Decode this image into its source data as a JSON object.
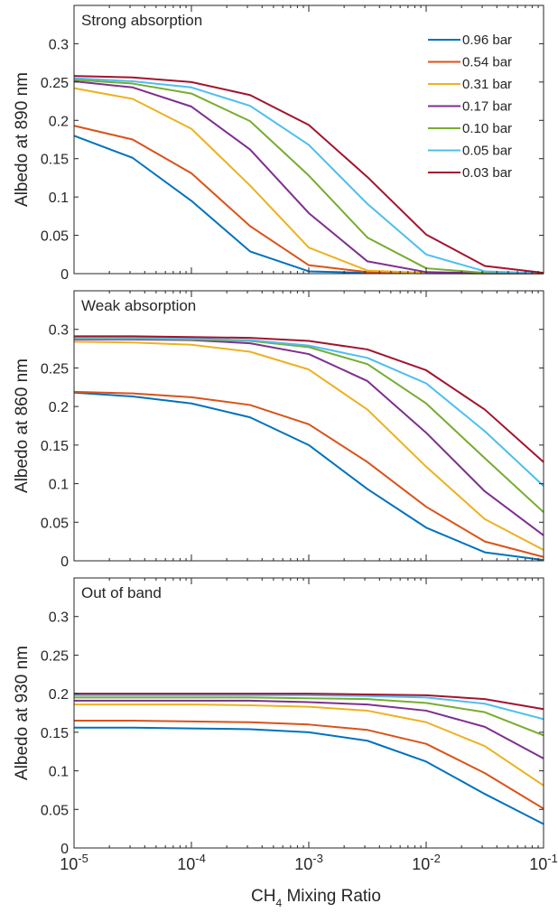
{
  "chart_data": [
    {
      "type": "line",
      "title": "Strong absorption",
      "ylabel": "Albedo at 890 nm",
      "xlabel": "",
      "xscale": "log",
      "xlim": [
        1e-05,
        0.1
      ],
      "ylim": [
        0,
        0.35
      ],
      "yticks": [
        "0",
        "0.05",
        "0.1",
        "0.15",
        "0.2",
        "0.25",
        "0.3"
      ],
      "legend": "top-right",
      "x": [
        1e-05,
        3.16e-05,
        0.0001,
        0.000316,
        0.001,
        0.00316,
        0.01,
        0.0316,
        0.1
      ],
      "series": [
        {
          "name": "0.96 bar",
          "color": "#0072BD",
          "values": [
            0.18,
            0.151,
            0.095,
            0.029,
            0.003,
            0.001,
            0.0005,
            0.0003,
            0.0002
          ]
        },
        {
          "name": "0.54 bar",
          "color": "#D95319",
          "values": [
            0.193,
            0.175,
            0.131,
            0.062,
            0.011,
            0.002,
            0.0006,
            0.0003,
            0.0002
          ]
        },
        {
          "name": "0.31 bar",
          "color": "#EDB120",
          "values": [
            0.242,
            0.228,
            0.189,
            0.115,
            0.034,
            0.004,
            0.001,
            0.0004,
            0.0002
          ]
        },
        {
          "name": "0.17 bar",
          "color": "#7E2F8E",
          "values": [
            0.251,
            0.243,
            0.218,
            0.162,
            0.079,
            0.016,
            0.002,
            0.0005,
            0.0003
          ]
        },
        {
          "name": "0.10 bar",
          "color": "#77AC30",
          "values": [
            0.253,
            0.248,
            0.235,
            0.199,
            0.128,
            0.047,
            0.007,
            0.001,
            0.0003
          ]
        },
        {
          "name": "0.05 bar",
          "color": "#4DBEEE",
          "values": [
            0.255,
            0.251,
            0.243,
            0.219,
            0.168,
            0.091,
            0.025,
            0.003,
            0.0005
          ]
        },
        {
          "name": "0.03 bar",
          "color": "#A2142F",
          "values": [
            0.258,
            0.256,
            0.25,
            0.233,
            0.194,
            0.126,
            0.051,
            0.01,
            0.001
          ]
        }
      ]
    },
    {
      "type": "line",
      "title": "Weak absorption",
      "ylabel": "Albedo at 860 nm",
      "xlabel": "",
      "xscale": "log",
      "xlim": [
        1e-05,
        0.1
      ],
      "ylim": [
        0,
        0.35
      ],
      "yticks": [
        "0",
        "0.05",
        "0.1",
        "0.15",
        "0.2",
        "0.25",
        "0.3"
      ],
      "x": [
        1e-05,
        3.16e-05,
        0.0001,
        0.000316,
        0.001,
        0.00316,
        0.01,
        0.0316,
        0.1
      ],
      "series": [
        {
          "name": "0.96 bar",
          "color": "#0072BD",
          "values": [
            0.218,
            0.213,
            0.204,
            0.186,
            0.15,
            0.093,
            0.043,
            0.011,
            0.001
          ]
        },
        {
          "name": "0.54 bar",
          "color": "#D95319",
          "values": [
            0.219,
            0.217,
            0.212,
            0.202,
            0.177,
            0.128,
            0.07,
            0.025,
            0.005
          ]
        },
        {
          "name": "0.31 bar",
          "color": "#EDB120",
          "values": [
            0.284,
            0.283,
            0.28,
            0.271,
            0.248,
            0.196,
            0.122,
            0.054,
            0.014
          ]
        },
        {
          "name": "0.17 bar",
          "color": "#7E2F8E",
          "values": [
            0.287,
            0.287,
            0.286,
            0.282,
            0.268,
            0.233,
            0.166,
            0.09,
            0.033
          ]
        },
        {
          "name": "0.10 bar",
          "color": "#77AC30",
          "values": [
            0.288,
            0.288,
            0.287,
            0.285,
            0.277,
            0.255,
            0.204,
            0.133,
            0.063
          ]
        },
        {
          "name": "0.05 bar",
          "color": "#4DBEEE",
          "values": [
            0.289,
            0.289,
            0.288,
            0.286,
            0.279,
            0.263,
            0.23,
            0.168,
            0.097
          ]
        },
        {
          "name": "0.03 bar",
          "color": "#A2142F",
          "values": [
            0.291,
            0.291,
            0.29,
            0.289,
            0.285,
            0.274,
            0.247,
            0.196,
            0.128
          ]
        }
      ]
    },
    {
      "type": "line",
      "title": "Out of band",
      "ylabel": "Albedo at 930 nm",
      "xlabel": "Mixing Ratio",
      "xlabel_chem": "CH",
      "xlabel_sub": "4",
      "xscale": "log",
      "xlim": [
        1e-05,
        0.1
      ],
      "ylim": [
        0,
        0.35
      ],
      "yticks": [
        "0",
        "0.05",
        "0.1",
        "0.15",
        "0.2",
        "0.25",
        "0.3"
      ],
      "xticks": [
        {
          "base": "10",
          "exp": "-5"
        },
        {
          "base": "10",
          "exp": "-4"
        },
        {
          "base": "10",
          "exp": "-3"
        },
        {
          "base": "10",
          "exp": "-2"
        },
        {
          "base": "10",
          "exp": "-1"
        }
      ],
      "x": [
        1e-05,
        3.16e-05,
        0.0001,
        0.000316,
        0.001,
        0.00316,
        0.01,
        0.0316,
        0.1
      ],
      "series": [
        {
          "name": "0.96 bar",
          "color": "#0072BD",
          "values": [
            0.156,
            0.156,
            0.155,
            0.154,
            0.15,
            0.139,
            0.112,
            0.07,
            0.031
          ]
        },
        {
          "name": "0.54 bar",
          "color": "#D95319",
          "values": [
            0.165,
            0.165,
            0.164,
            0.163,
            0.16,
            0.153,
            0.135,
            0.097,
            0.051
          ]
        },
        {
          "name": "0.31 bar",
          "color": "#EDB120",
          "values": [
            0.186,
            0.186,
            0.186,
            0.185,
            0.183,
            0.178,
            0.163,
            0.132,
            0.081
          ]
        },
        {
          "name": "0.17 bar",
          "color": "#7E2F8E",
          "values": [
            0.191,
            0.191,
            0.191,
            0.191,
            0.189,
            0.186,
            0.178,
            0.157,
            0.116
          ]
        },
        {
          "name": "0.10 bar",
          "color": "#77AC30",
          "values": [
            0.195,
            0.195,
            0.195,
            0.195,
            0.194,
            0.193,
            0.188,
            0.176,
            0.146
          ]
        },
        {
          "name": "0.05 bar",
          "color": "#4DBEEE",
          "values": [
            0.198,
            0.198,
            0.198,
            0.198,
            0.198,
            0.197,
            0.195,
            0.187,
            0.167
          ]
        },
        {
          "name": "0.03 bar",
          "color": "#A2142F",
          "values": [
            0.2,
            0.2,
            0.2,
            0.2,
            0.2,
            0.199,
            0.198,
            0.193,
            0.18
          ]
        }
      ]
    }
  ]
}
